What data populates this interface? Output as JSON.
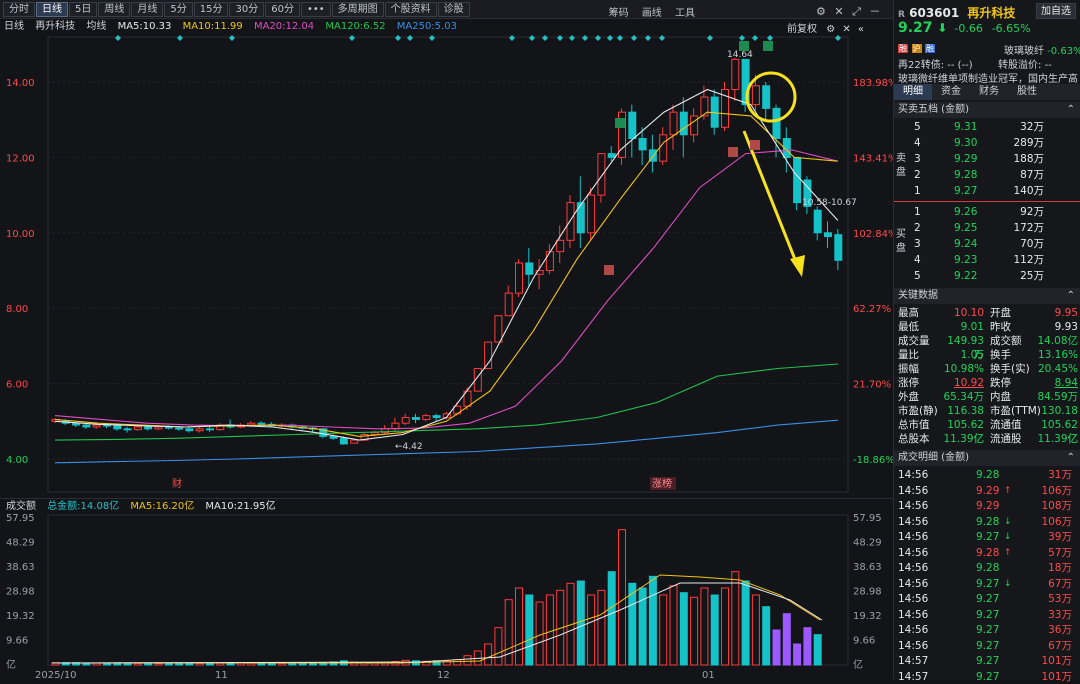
{
  "toolbar": {
    "tabs": [
      "分时",
      "日线",
      "5日",
      "周线",
      "月线",
      "5分",
      "15分",
      "30分",
      "60分",
      "•••",
      "多周期图",
      "个股资料",
      "诊股"
    ],
    "active": 1,
    "tools": [
      "筹码",
      "画线",
      "工具"
    ]
  },
  "mabar": {
    "period": "日线",
    "name": "再升科技",
    "label": "均线",
    "ma5": "MA5:10.33",
    "ma10": "MA10:11.99",
    "ma20": "MA20:12.04",
    "ma120": "MA120:6.52",
    "ma250": "MA250:5.03",
    "fq": "前复权"
  },
  "chart": {
    "yticks": [
      "14.00",
      "12.00",
      "10.00",
      "8.00",
      "6.00",
      "4.00"
    ],
    "pcts": [
      "183.98%",
      "143.41%",
      "102.84%",
      "62.27%",
      "21.70%",
      "-18.86%"
    ],
    "high_label": "14.64",
    "low_label": "4.42",
    "range_label": "10.58-10.67",
    "cai": "财",
    "zhangting": "涨榜",
    "xlabels": [
      "2025/10",
      "11",
      "12",
      "01"
    ],
    "vol_ticks": [
      "57.95",
      "48.29",
      "38.63",
      "28.98",
      "19.32",
      "9.66",
      "亿"
    ]
  },
  "chart_data": {
    "type": "candlestick",
    "symbol": "603601",
    "ylim": [
      3.6,
      15.2
    ],
    "ma": [
      "MA5",
      "MA10",
      "MA20",
      "MA120",
      "MA250"
    ],
    "last": 9.27
  },
  "volhdr": {
    "label": "成交额",
    "total": "总金额:14.08亿",
    "ma5": "MA5:16.20亿",
    "ma10": "MA10:21.95亿"
  },
  "stock": {
    "code": "603601",
    "name": "再升科技",
    "price": "9.27",
    "chg": "-0.66",
    "pct": "-6.65%",
    "btn": "加自选",
    "tag1": "玻璃玻纤",
    "tag1v": "-0.63%",
    "zz": "再22转债:",
    "zzv": "-- (--)",
    "zgyj": "转股溢价:",
    "zgyjv": "--",
    "desc": "玻璃微纤维单项制造业冠军，国内生产高效..."
  },
  "tabs": [
    "明细",
    "资金",
    "财务",
    "股性"
  ],
  "orderbook": {
    "title": "买卖五档 (金额)",
    "sell_label": "卖盘",
    "buy_label": "买盘",
    "sells": [
      {
        "n": "5",
        "p": "9.31",
        "v": "32万"
      },
      {
        "n": "4",
        "p": "9.30",
        "v": "289万"
      },
      {
        "n": "3",
        "p": "9.29",
        "v": "188万"
      },
      {
        "n": "2",
        "p": "9.28",
        "v": "87万"
      },
      {
        "n": "1",
        "p": "9.27",
        "v": "140万"
      }
    ],
    "buys": [
      {
        "n": "1",
        "p": "9.26",
        "v": "92万"
      },
      {
        "n": "2",
        "p": "9.25",
        "v": "172万"
      },
      {
        "n": "3",
        "p": "9.24",
        "v": "70万"
      },
      {
        "n": "4",
        "p": "9.23",
        "v": "112万"
      },
      {
        "n": "5",
        "p": "9.22",
        "v": "25万"
      }
    ]
  },
  "keydata": {
    "title": "关键数据",
    "rows": [
      [
        "最高",
        "10.10",
        "开盘",
        "9.95"
      ],
      [
        "最低",
        "9.01",
        "昨收",
        "9.93"
      ],
      [
        "成交量",
        "149.93万",
        "成交额",
        "14.08亿"
      ],
      [
        "量比",
        "1.05",
        "换手",
        "13.16%"
      ],
      [
        "振幅",
        "10.98%",
        "换手(实)",
        "20.45%"
      ],
      [
        "涨停",
        "10.92",
        "跌停",
        "8.94"
      ],
      [
        "外盘",
        "65.34万",
        "内盘",
        "84.59万"
      ],
      [
        "市盈(静)",
        "116.38",
        "市盈(TTM)",
        "130.18"
      ],
      [
        "总市值",
        "105.62亿",
        "流通值",
        "105.62亿"
      ],
      [
        "总股本",
        "11.39亿",
        "流通股",
        "11.39亿"
      ]
    ]
  },
  "trades": {
    "title": "成交明细 (金额)",
    "rows": [
      [
        "14:56",
        "9.28",
        "31万",
        ""
      ],
      [
        "14:56",
        "9.29",
        "106万",
        "↑"
      ],
      [
        "14:56",
        "9.29",
        "108万",
        ""
      ],
      [
        "14:56",
        "9.28",
        "106万",
        "↓"
      ],
      [
        "14:56",
        "9.27",
        "39万",
        "↓"
      ],
      [
        "14:56",
        "9.28",
        "57万",
        "↑"
      ],
      [
        "14:56",
        "9.28",
        "18万",
        ""
      ],
      [
        "14:56",
        "9.27",
        "67万",
        "↓"
      ],
      [
        "14:56",
        "9.27",
        "53万",
        ""
      ],
      [
        "14:56",
        "9.27",
        "33万",
        ""
      ],
      [
        "14:56",
        "9.27",
        "36万",
        ""
      ],
      [
        "14:56",
        "9.27",
        "67万",
        ""
      ],
      [
        "14:57",
        "9.27",
        "101万",
        ""
      ],
      [
        "14:57",
        "9.27",
        "101万",
        ""
      ]
    ]
  }
}
